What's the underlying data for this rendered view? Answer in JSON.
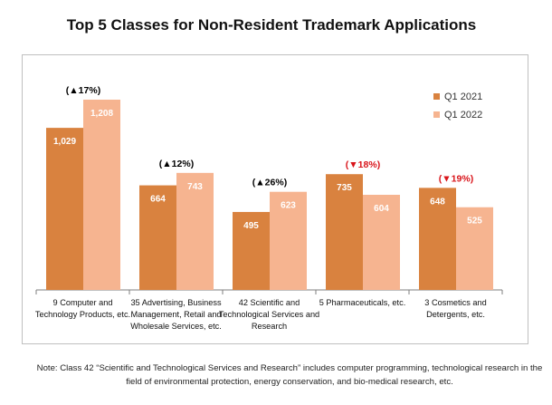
{
  "chart_data": {
    "type": "bar",
    "title": "Top 5 Classes for Non-Resident Trademark Applications",
    "categories": [
      [
        "9 Computer and",
        "Technology Products, etc."
      ],
      [
        "35 Advertising, Business",
        "Management, Retail and",
        "Wholesale Services, etc."
      ],
      [
        "42 Scientific and",
        "Technological Services and",
        "Research"
      ],
      [
        "5 Pharmaceuticals, etc."
      ],
      [
        "3 Cosmetics and",
        "Detergents, etc."
      ]
    ],
    "series": [
      {
        "name": "Q1 2021",
        "color": "#d9823f",
        "values": [
          1029,
          664,
          495,
          735,
          648
        ],
        "labels": [
          "1,029",
          "664",
          "495",
          "735",
          "648"
        ]
      },
      {
        "name": "Q1 2022",
        "color": "#f6b490",
        "values": [
          1208,
          743,
          623,
          604,
          525
        ],
        "labels": [
          "1,208",
          "743",
          "623",
          "604",
          "525"
        ]
      }
    ],
    "changes": [
      {
        "text": "(▲17%)",
        "color": "#000000"
      },
      {
        "text": "(▲12%)",
        "color": "#000000"
      },
      {
        "text": "(▲26%)",
        "color": "#000000"
      },
      {
        "text": "(▼18%)",
        "color": "#d9141a"
      },
      {
        "text": "(▼19%)",
        "color": "#d9141a"
      }
    ],
    "ylim": [
      0,
      1300
    ],
    "legend_position": "top-right",
    "grid": false
  },
  "note": "Note: Class 42 “Scientific and Technological Services and Research” includes computer programming, technological research in the field of environmental protection, energy conservation, and bio-medical research, etc."
}
